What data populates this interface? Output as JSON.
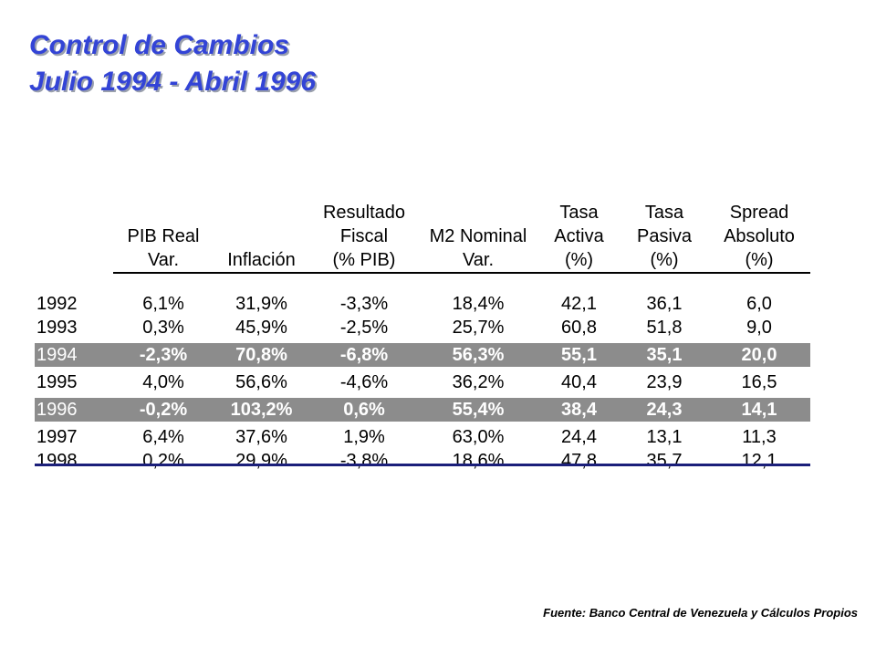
{
  "title": {
    "line1": "Control de Cambios",
    "line2": "Julio 1994 - Abril 1996"
  },
  "table": {
    "headers": [
      {
        "lines": [
          "",
          "PIB Real",
          "Var."
        ]
      },
      {
        "lines": [
          "",
          "",
          "Inflación"
        ]
      },
      {
        "lines": [
          "Resultado",
          "Fiscal",
          "(% PIB)"
        ]
      },
      {
        "lines": [
          "",
          "M2 Nominal",
          "Var."
        ]
      },
      {
        "lines": [
          "Tasa",
          "Activa",
          "(%)"
        ]
      },
      {
        "lines": [
          "Tasa",
          "Pasiva",
          "(%)"
        ]
      },
      {
        "lines": [
          "Spread",
          "Absoluto",
          "(%)"
        ]
      }
    ],
    "rows": [
      {
        "year": "1992",
        "highlight": false,
        "values": [
          "6,1%",
          "31,9%",
          "-3,3%",
          "18,4%",
          "42,1",
          "36,1",
          "6,0"
        ]
      },
      {
        "year": "1993",
        "highlight": false,
        "values": [
          "0,3%",
          "45,9%",
          "-2,5%",
          "25,7%",
          "60,8",
          "51,8",
          "9,0"
        ]
      },
      {
        "year": "1994",
        "highlight": true,
        "values": [
          "-2,3%",
          "70,8%",
          "-6,8%",
          "56,3%",
          "55,1",
          "35,1",
          "20,0"
        ]
      },
      {
        "year": "1995",
        "highlight": false,
        "values": [
          "4,0%",
          "56,6%",
          "-4,6%",
          "36,2%",
          "40,4",
          "23,9",
          "16,5"
        ]
      },
      {
        "year": "1996",
        "highlight": true,
        "values": [
          "-0,2%",
          "103,2%",
          "0,6%",
          "55,4%",
          "38,4",
          "24,3",
          "14,1"
        ]
      },
      {
        "year": "1997",
        "highlight": false,
        "values": [
          "6,4%",
          "37,6%",
          "1,9%",
          "63,0%",
          "24,4",
          "13,1",
          "11,3"
        ]
      },
      {
        "year": "1998",
        "highlight": false,
        "values": [
          "0,2%",
          "29,9%",
          "-3,8%",
          "18,6%",
          "47,8",
          "35,7",
          "12,1"
        ]
      }
    ]
  },
  "source": "Fuente: Banco Central de Venezuela y Cálculos Propios",
  "colors": {
    "title": "#3344d6",
    "highlight_row": "#8c8c8c",
    "bottom_rule": "#1b1f7a"
  }
}
